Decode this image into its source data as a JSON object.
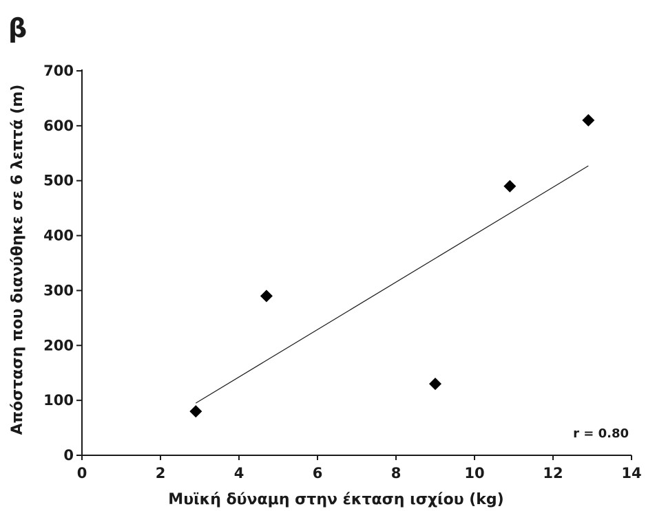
{
  "chart_data": {
    "type": "scatter",
    "panel_label": "β",
    "xlabel": "Μυϊκή δύναμη στην έκταση ισχίου (kg)",
    "ylabel": "Απόσταση που διανύθηκε σε 6 λεπτά (m)",
    "xlim": [
      0,
      14
    ],
    "ylim": [
      0,
      700
    ],
    "x_ticks": [
      0,
      2,
      4,
      6,
      8,
      10,
      12,
      14
    ],
    "y_ticks": [
      0,
      100,
      200,
      300,
      400,
      500,
      600,
      700
    ],
    "grid": false,
    "marker": "diamond",
    "points": [
      {
        "x": 2.9,
        "y": 80
      },
      {
        "x": 4.7,
        "y": 290
      },
      {
        "x": 9.0,
        "y": 130
      },
      {
        "x": 10.9,
        "y": 490
      },
      {
        "x": 12.9,
        "y": 610
      }
    ],
    "trendline": {
      "x": [
        2.9,
        12.9
      ],
      "y": [
        95,
        527
      ]
    },
    "annotation": "r = 0.80",
    "colors": {
      "marker": "#000000",
      "line": "#1a1a1a",
      "axis": "#1a1a1a"
    }
  }
}
